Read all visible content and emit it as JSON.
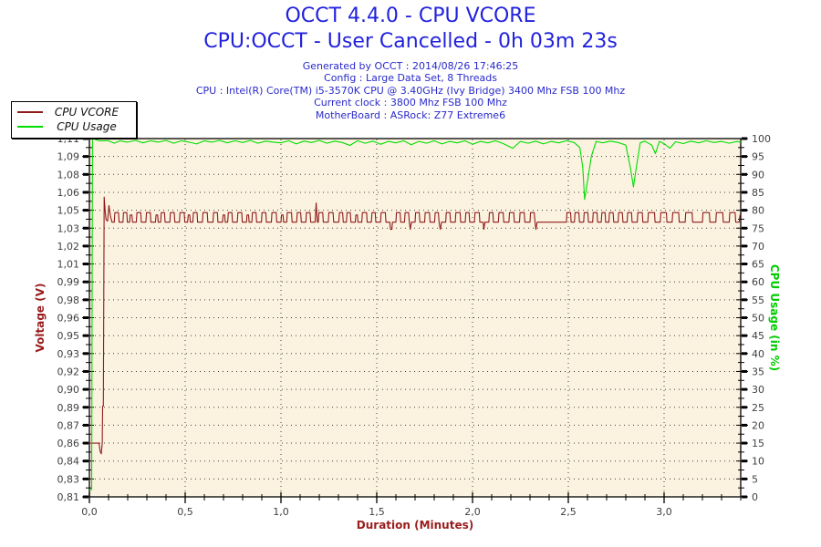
{
  "header": {
    "title": "OCCT 4.4.0 - CPU VCORE",
    "subtitle": "CPU:OCCT - User Cancelled - 0h 03m 23s",
    "info_lines": [
      "Generated by OCCT : 2014/08/26 17:46:25",
      "Config : Large Data Set, 8 Threads",
      "CPU : Intel(R) Core(TM) i5-3570K CPU @ 3.40GHz (Ivy Bridge) 3400 Mhz FSB 100 Mhz",
      "Current clock : 3800 Mhz FSB 100 Mhz",
      "MotherBoard : ASRock: Z77 Extreme6"
    ]
  },
  "legend": {
    "items": [
      {
        "label": "CPU VCORE",
        "color": "#8f1a1a"
      },
      {
        "label": "CPU Usage",
        "color": "#00dd00"
      }
    ]
  },
  "colors": {
    "title_blue": "#2222dd",
    "info_blue": "#2a2acc",
    "vcore_red": "#8f1a1a",
    "usage_green": "#00dd00",
    "axis_title_red": "#9a1c1c",
    "axis_title_green": "#00cc00",
    "tick_text": "#3f3f3f",
    "plot_bg": "#fbf3e0",
    "grid_dot": "#404040",
    "frame": "#000000"
  },
  "chart_data": {
    "type": "line",
    "title": "OCCT 4.4.0 - CPU VCORE",
    "xlabel": "Duration (Minutes)",
    "ylabel_left": "Voltage (V)",
    "ylabel_right": "CPU Usage (in %)",
    "x_range": [
      0,
      3.4
    ],
    "x_tick_values": [
      0,
      0.5,
      1.0,
      1.5,
      2.0,
      2.5,
      3.0
    ],
    "x_tick_labels": [
      "0,0",
      "0,5",
      "1,0",
      "1,5",
      "2,0",
      "2,5",
      "3,0"
    ],
    "x_minor_step": 0.1,
    "grid_v_lines": [
      0.5,
      1.0,
      1.5,
      2.0,
      2.5,
      3.0
    ],
    "left_axis": {
      "range": [
        0.81,
        1.11
      ],
      "tick_values": [
        1.11,
        1.095,
        1.08,
        1.065,
        1.05,
        1.035,
        1.02,
        1.005,
        0.99,
        0.975,
        0.96,
        0.945,
        0.93,
        0.915,
        0.9,
        0.885,
        0.87,
        0.855,
        0.84,
        0.825,
        0.81
      ],
      "tick_labels": [
        "1,11",
        "1,09",
        "1,08",
        "1,06",
        "1,05",
        "1,03",
        "1,02",
        "1,01",
        "0,99",
        "0,98",
        "0,96",
        "0,95",
        "0,93",
        "0,92",
        "0,90",
        "0,89",
        "0,87",
        "0,86",
        "0,84",
        "0,83",
        "0,81"
      ]
    },
    "right_axis": {
      "range": [
        0,
        100
      ],
      "tick_values": [
        100,
        95,
        90,
        85,
        80,
        75,
        70,
        65,
        60,
        55,
        50,
        45,
        40,
        35,
        30,
        25,
        20,
        15,
        10,
        5,
        0
      ],
      "tick_labels": [
        "100",
        "95",
        "90",
        "85",
        "80",
        "75",
        "70",
        "65",
        "60",
        "55",
        "50",
        "45",
        "40",
        "35",
        "30",
        "25",
        "20",
        "15",
        "10",
        "5",
        "0"
      ]
    },
    "series": [
      {
        "name": "CPU VCORE",
        "axis": "left",
        "color": "#8f1a1a",
        "points": [
          0,
          0.855,
          0.05,
          0.855,
          0.056,
          0.848,
          0.062,
          0.846,
          0.067,
          0.855,
          0.069,
          0.886,
          0.073,
          0.886,
          0.077,
          1.061,
          0.082,
          1.05,
          0.087,
          1.042,
          0.095,
          1.041,
          0.102,
          1.054,
          0.11,
          1.045,
          0.118,
          1.04,
          0.13,
          1.04,
          0.133,
          1.048,
          0.152,
          1.048,
          0.155,
          1.04,
          0.175,
          1.04,
          0.178,
          1.048,
          0.195,
          1.048,
          0.198,
          1.04,
          0.21,
          1.04,
          0.213,
          1.046,
          0.222,
          1.046,
          0.225,
          1.04,
          0.245,
          1.04,
          0.248,
          1.048,
          0.268,
          1.048,
          0.271,
          1.04,
          0.295,
          1.04,
          0.298,
          1.048,
          0.318,
          1.048,
          0.321,
          1.04,
          0.345,
          1.04,
          0.348,
          1.046,
          0.356,
          1.046,
          0.359,
          1.04,
          0.372,
          1.04,
          0.375,
          1.048,
          0.392,
          1.048,
          0.395,
          1.04,
          0.42,
          1.04,
          0.423,
          1.048,
          0.443,
          1.048,
          0.446,
          1.04,
          0.47,
          1.04,
          0.473,
          1.048,
          0.495,
          1.048,
          0.498,
          1.04,
          0.513,
          1.04,
          0.516,
          1.046,
          0.524,
          1.046,
          0.527,
          1.04,
          0.54,
          1.04,
          0.543,
          1.048,
          0.562,
          1.048,
          0.565,
          1.04,
          0.59,
          1.04,
          0.593,
          1.048,
          0.615,
          1.048,
          0.618,
          1.04,
          0.645,
          1.04,
          0.648,
          1.048,
          0.668,
          1.048,
          0.671,
          1.04,
          0.695,
          1.04,
          0.698,
          1.046,
          0.706,
          1.046,
          0.709,
          1.04,
          0.722,
          1.04,
          0.725,
          1.048,
          0.744,
          1.048,
          0.747,
          1.04,
          0.772,
          1.04,
          0.775,
          1.048,
          0.795,
          1.048,
          0.798,
          1.04,
          0.82,
          1.04,
          0.823,
          1.046,
          0.831,
          1.046,
          0.834,
          1.04,
          0.848,
          1.04,
          0.851,
          1.048,
          0.87,
          1.048,
          0.873,
          1.04,
          0.898,
          1.04,
          0.901,
          1.048,
          0.921,
          1.048,
          0.924,
          1.04,
          0.95,
          1.04,
          0.953,
          1.048,
          0.975,
          1.048,
          0.978,
          1.04,
          1.0,
          1.04,
          1.003,
          1.046,
          1.011,
          1.046,
          1.014,
          1.04,
          1.03,
          1.04,
          1.033,
          1.048,
          1.055,
          1.048,
          1.058,
          1.04,
          1.082,
          1.04,
          1.085,
          1.048,
          1.103,
          1.048,
          1.106,
          1.04,
          1.13,
          1.04,
          1.133,
          1.048,
          1.152,
          1.048,
          1.155,
          1.04,
          1.178,
          1.04,
          1.184,
          1.056,
          1.19,
          1.04,
          1.195,
          1.04,
          1.198,
          1.048,
          1.218,
          1.048,
          1.221,
          1.04,
          1.247,
          1.04,
          1.25,
          1.048,
          1.272,
          1.048,
          1.275,
          1.04,
          1.302,
          1.04,
          1.305,
          1.048,
          1.322,
          1.048,
          1.325,
          1.04,
          1.342,
          1.04,
          1.345,
          1.048,
          1.362,
          1.048,
          1.365,
          1.04,
          1.388,
          1.04,
          1.391,
          1.046,
          1.399,
          1.046,
          1.402,
          1.04,
          1.422,
          1.04,
          1.425,
          1.048,
          1.447,
          1.048,
          1.45,
          1.04,
          1.472,
          1.04,
          1.475,
          1.048,
          1.492,
          1.048,
          1.495,
          1.04,
          1.52,
          1.04,
          1.523,
          1.048,
          1.545,
          1.048,
          1.548,
          1.04,
          1.568,
          1.04,
          1.572,
          1.034,
          1.579,
          1.034,
          1.582,
          1.04,
          1.6,
          1.04,
          1.603,
          1.048,
          1.622,
          1.048,
          1.625,
          1.04,
          1.645,
          1.04,
          1.648,
          1.048,
          1.666,
          1.048,
          1.67,
          1.04,
          1.675,
          1.034,
          1.681,
          1.04,
          1.7,
          1.04,
          1.703,
          1.048,
          1.722,
          1.048,
          1.725,
          1.04,
          1.75,
          1.04,
          1.753,
          1.048,
          1.775,
          1.048,
          1.778,
          1.04,
          1.802,
          1.04,
          1.805,
          1.048,
          1.822,
          1.048,
          1.825,
          1.04,
          1.832,
          1.034,
          1.838,
          1.04,
          1.86,
          1.04,
          1.863,
          1.048,
          1.882,
          1.048,
          1.885,
          1.04,
          1.91,
          1.04,
          1.913,
          1.048,
          1.935,
          1.048,
          1.938,
          1.04,
          1.962,
          1.04,
          1.965,
          1.048,
          1.982,
          1.048,
          1.985,
          1.04,
          2.01,
          1.04,
          2.013,
          1.048,
          2.035,
          1.048,
          2.038,
          1.04,
          2.055,
          1.04,
          2.059,
          1.034,
          2.065,
          1.04,
          2.085,
          1.04,
          2.088,
          1.048,
          2.106,
          1.048,
          2.109,
          1.04,
          2.135,
          1.04,
          2.138,
          1.048,
          2.16,
          1.048,
          2.163,
          1.04,
          2.19,
          1.04,
          2.193,
          1.048,
          2.215,
          1.048,
          2.218,
          1.04,
          2.245,
          1.04,
          2.248,
          1.048,
          2.27,
          1.048,
          2.273,
          1.04,
          2.3,
          1.04,
          2.303,
          1.048,
          2.322,
          1.048,
          2.326,
          1.04,
          2.331,
          1.034,
          2.337,
          1.04,
          2.49,
          1.04,
          2.493,
          1.048,
          2.512,
          1.048,
          2.515,
          1.04,
          2.532,
          1.04,
          2.535,
          1.048,
          2.555,
          1.048,
          2.558,
          1.04,
          2.58,
          1.04,
          2.583,
          1.048,
          2.602,
          1.048,
          2.605,
          1.04,
          2.627,
          1.04,
          2.63,
          1.048,
          2.65,
          1.048,
          2.653,
          1.04,
          2.672,
          1.04,
          2.675,
          1.048,
          2.692,
          1.048,
          2.695,
          1.04,
          2.712,
          1.04,
          2.715,
          1.048,
          2.734,
          1.048,
          2.737,
          1.04,
          2.76,
          1.04,
          2.763,
          1.048,
          2.782,
          1.048,
          2.785,
          1.04,
          2.807,
          1.04,
          2.81,
          1.048,
          2.83,
          1.048,
          2.833,
          1.04,
          2.86,
          1.04,
          2.863,
          1.048,
          2.886,
          1.048,
          2.889,
          1.04,
          2.915,
          1.04,
          2.918,
          1.048,
          2.95,
          1.048,
          2.953,
          1.04,
          2.98,
          1.04,
          2.983,
          1.048,
          3.012,
          1.048,
          3.015,
          1.04,
          3.042,
          1.04,
          3.045,
          1.048,
          3.076,
          1.048,
          3.079,
          1.04,
          3.11,
          1.04,
          3.113,
          1.048,
          3.146,
          1.048,
          3.149,
          1.04,
          3.2,
          1.04,
          3.203,
          1.048,
          3.236,
          1.048,
          3.239,
          1.04,
          3.27,
          1.04,
          3.273,
          1.048,
          3.306,
          1.048,
          3.309,
          1.04,
          3.34,
          1.04,
          3.343,
          1.048,
          3.371,
          1.048,
          3.374,
          1.04,
          3.392,
          1.04,
          3.396,
          1.046,
          3.4,
          1.046
        ]
      },
      {
        "name": "CPU Usage",
        "axis": "right",
        "color": "#00dd00",
        "points": [
          0,
          2,
          0.012,
          2,
          0.016,
          100,
          0.05,
          99.4,
          0.1,
          99.4,
          0.13,
          98.7,
          0.16,
          99.4,
          0.2,
          99.0,
          0.24,
          99.5,
          0.28,
          98.8,
          0.32,
          99.4,
          0.36,
          99.0,
          0.4,
          99.5,
          0.44,
          98.7,
          0.48,
          99.4,
          0.52,
          99.0,
          0.56,
          98.5,
          0.6,
          99.4,
          0.64,
          99.0,
          0.68,
          99.5,
          0.72,
          98.8,
          0.76,
          99.4,
          0.8,
          98.9,
          0.84,
          99.5,
          0.88,
          98.7,
          0.92,
          99.3,
          0.96,
          99.0,
          1.0,
          98.8,
          1.04,
          99.4,
          1.08,
          98.5,
          1.12,
          99.3,
          1.16,
          98.9,
          1.2,
          99.5,
          1.24,
          98.7,
          1.28,
          99.3,
          1.32,
          98.9,
          1.36,
          98.1,
          1.4,
          99.4,
          1.44,
          98.7,
          1.48,
          99.3,
          1.52,
          98.4,
          1.56,
          99.2,
          1.6,
          98.8,
          1.64,
          99.4,
          1.68,
          98.3,
          1.72,
          99.2,
          1.76,
          98.7,
          1.8,
          99.4,
          1.84,
          98.5,
          1.88,
          99.2,
          1.92,
          98.8,
          1.96,
          99.4,
          2.0,
          98.4,
          2.04,
          99.2,
          2.08,
          98.8,
          2.12,
          99.4,
          2.16,
          98.6,
          2.21,
          97.3,
          2.25,
          99.2,
          2.29,
          98.7,
          2.33,
          99.3,
          2.37,
          98.5,
          2.41,
          99.2,
          2.45,
          98.8,
          2.49,
          99.4,
          2.53,
          98.9,
          2.56,
          97.5,
          2.575,
          92,
          2.585,
          83,
          2.6,
          88,
          2.62,
          95,
          2.645,
          99.2,
          2.68,
          98.8,
          2.72,
          99.3,
          2.76,
          98.9,
          2.8,
          98.2,
          2.825,
          91.5,
          2.84,
          86.5,
          2.855,
          92,
          2.875,
          98.8,
          2.9,
          99.3,
          2.935,
          98.2,
          2.955,
          95.8,
          2.975,
          99.2,
          3.0,
          98.6,
          3.03,
          97.3,
          3.06,
          99.1,
          3.1,
          98.6,
          3.14,
          99.3,
          3.18,
          98.8,
          3.22,
          99.4,
          3.26,
          98.9,
          3.3,
          99.2,
          3.34,
          98.7,
          3.38,
          99.2,
          3.4,
          99.0
        ]
      }
    ]
  }
}
